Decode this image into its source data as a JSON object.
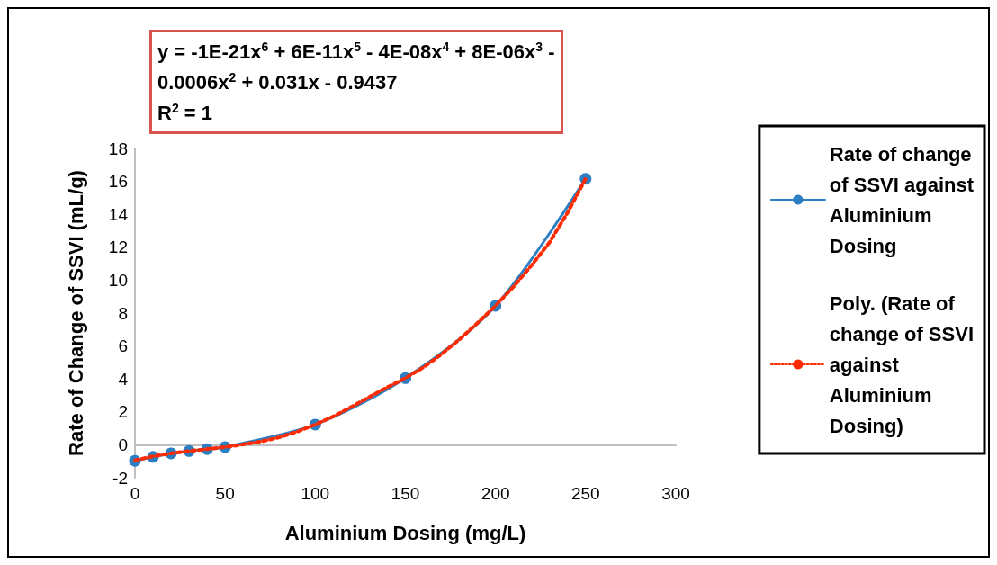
{
  "chart_data": {
    "type": "line",
    "xlabel": "Aluminium Dosing (mg/L)",
    "ylabel": "Rate of Change of SSVI (mL/g)",
    "annotations": [
      "y = -1E-21x$^{6}$ + 6E-11x$^{5}$ - 4E-08x$^{4}$ + 8E-06x$^{3}$ - 0.0006x$^{2}$ + 0.031x - 0.9437\nR$^{2}$ = 1"
    ],
    "xlim": [
      0,
      300
    ],
    "xticks": [
      0,
      50,
      100,
      150,
      200,
      250,
      300
    ],
    "ylim": [
      -2,
      18
    ],
    "yticks": [
      -2,
      0,
      2,
      4,
      6,
      8,
      10,
      12,
      14,
      16,
      18
    ],
    "grid": false,
    "legend": "right",
    "series": [
      {
        "name": "Rate of change of SSVI against Aluminium Dosing",
        "color": "#2e7fc1",
        "marker": "circle",
        "line_style": "solid",
        "x": [
          0,
          10,
          20,
          30,
          40,
          50,
          100,
          150,
          200,
          250
        ],
        "values": [
          -0.97,
          -0.73,
          -0.52,
          -0.38,
          -0.26,
          -0.14,
          1.23,
          4.05,
          8.44,
          16.16
        ]
      },
      {
        "name": "Poly. (Rate of change of SSVI against Aluminium Dosing)",
        "color": "#ff2a00",
        "marker": "none",
        "line_style": "dotted",
        "x": [
          0,
          10,
          20,
          30,
          40,
          50,
          60,
          70,
          80,
          90,
          100,
          110,
          120,
          130,
          140,
          150,
          160,
          170,
          180,
          190,
          200,
          210,
          220,
          230,
          240,
          250
        ],
        "values": [
          -0.94,
          -0.7,
          -0.52,
          -0.38,
          -0.26,
          -0.14,
          0.02,
          0.2,
          0.45,
          0.8,
          1.23,
          1.72,
          2.3,
          2.9,
          3.5,
          4.05,
          4.7,
          5.5,
          6.4,
          7.4,
          8.44,
          9.6,
          10.9,
          12.3,
          14.1,
          16.16
        ]
      }
    ]
  }
}
